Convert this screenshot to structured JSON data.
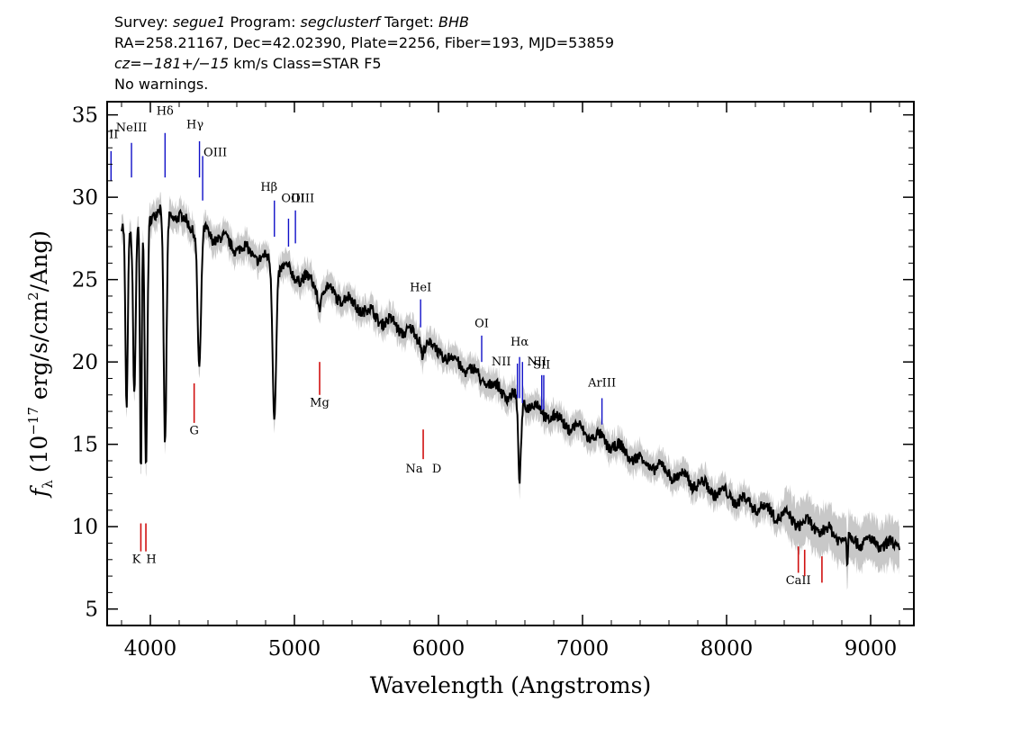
{
  "header": {
    "line1": {
      "survey_label": "Survey: ",
      "survey": "segue1",
      "program_label": " Program: ",
      "program": "segclusterf",
      "target_label": " Target: ",
      "target": "BHB"
    },
    "line2": "RA=258.21167, Dec=42.02390, Plate=2256, Fiber=193, MJD=53859",
    "line3": {
      "cz": "cz=−181+/−15",
      "rest": " km/s Class=STAR F5"
    },
    "line4": "No warnings."
  },
  "chart_data": {
    "type": "line",
    "xlabel": "Wavelength (Angstroms)",
    "ylabel": "fλ (10⁻¹⁷ erg/s/cm²/Ang)",
    "xlim": [
      3700,
      9300
    ],
    "ylim": [
      4,
      35.8
    ],
    "xticks": [
      4000,
      5000,
      6000,
      7000,
      8000,
      9000
    ],
    "yticks": [
      5,
      10,
      15,
      20,
      25,
      30,
      35
    ],
    "grid": false,
    "colors": {
      "spectrum": "#000000",
      "error_band": "#c8c8c8",
      "emission": "#1010c8",
      "absorption": "#d01010"
    },
    "continuum": {
      "x": [
        3800,
        3900,
        4000,
        4100,
        4200,
        4300,
        4400,
        4600,
        4800,
        5000,
        5200,
        5400,
        5600,
        5800,
        6000,
        6200,
        6400,
        6600,
        6800,
        7000,
        7200,
        7400,
        7600,
        7800,
        8000,
        8200,
        8400,
        8600,
        8800,
        9000,
        9200
      ],
      "y": [
        28.0,
        28.3,
        29.0,
        29.3,
        28.7,
        28.2,
        27.8,
        27.0,
        26.2,
        25.3,
        24.5,
        23.6,
        22.6,
        21.8,
        20.6,
        19.6,
        18.4,
        17.6,
        16.6,
        15.8,
        15.0,
        14.0,
        13.3,
        12.6,
        11.9,
        11.3,
        10.6,
        10.0,
        9.4,
        9.0,
        8.8
      ]
    },
    "absorption_features": [
      {
        "x": 3835,
        "depth": 11.0,
        "width": 8
      },
      {
        "x": 3889,
        "depth": 10.0,
        "width": 9
      },
      {
        "x": 3934,
        "depth": 16.0,
        "width": 6
      },
      {
        "x": 3970,
        "depth": 15.0,
        "width": 9
      },
      {
        "x": 4102,
        "depth": 14.5,
        "width": 10
      },
      {
        "x": 4340,
        "depth": 8.5,
        "width": 12
      },
      {
        "x": 4861,
        "depth": 9.2,
        "width": 12
      },
      {
        "x": 6563,
        "depth": 5.0,
        "width": 10
      },
      {
        "x": 5175,
        "depth": 1.0,
        "width": 15
      },
      {
        "x": 5890,
        "depth": 0.8,
        "width": 6
      },
      {
        "x": 8838,
        "depth": 2.0,
        "width": 4
      }
    ],
    "emission_lines": [
      {
        "label": "II",
        "x": 3727
      },
      {
        "label": "NeIII",
        "x": 3869
      },
      {
        "label": "Hδ",
        "x": 4102
      },
      {
        "label": "Hγ",
        "x": 4341
      },
      {
        "label": "OIII",
        "x": 4363
      },
      {
        "label": "Hβ",
        "x": 4861
      },
      {
        "label": "OIII",
        "x": 4959
      },
      {
        "label": "OIII",
        "x": 5007
      },
      {
        "label": "HeI",
        "x": 5876
      },
      {
        "label": "OI",
        "x": 6300
      },
      {
        "label": "NII",
        "x": 6548
      },
      {
        "label": "Hα",
        "x": 6563
      },
      {
        "label": "NII",
        "x": 6583
      },
      {
        "label": "SII",
        "x": 6717
      },
      {
        "label": "SII",
        "x": 6731
      },
      {
        "label": "ArIII",
        "x": 7135
      }
    ],
    "absorption_lines": [
      {
        "label": "K",
        "x": 3934
      },
      {
        "label": "H",
        "x": 3969
      },
      {
        "label": "G",
        "x": 4304
      },
      {
        "label": "Mg",
        "x": 5175
      },
      {
        "label": "Na",
        "x": 5894
      },
      {
        "label": "D",
        "x": 5894
      },
      {
        "label": "CaII",
        "x": 8498
      },
      {
        "label": "CaII",
        "x": 8542
      },
      {
        "label": "CaII",
        "x": 8662
      }
    ]
  }
}
